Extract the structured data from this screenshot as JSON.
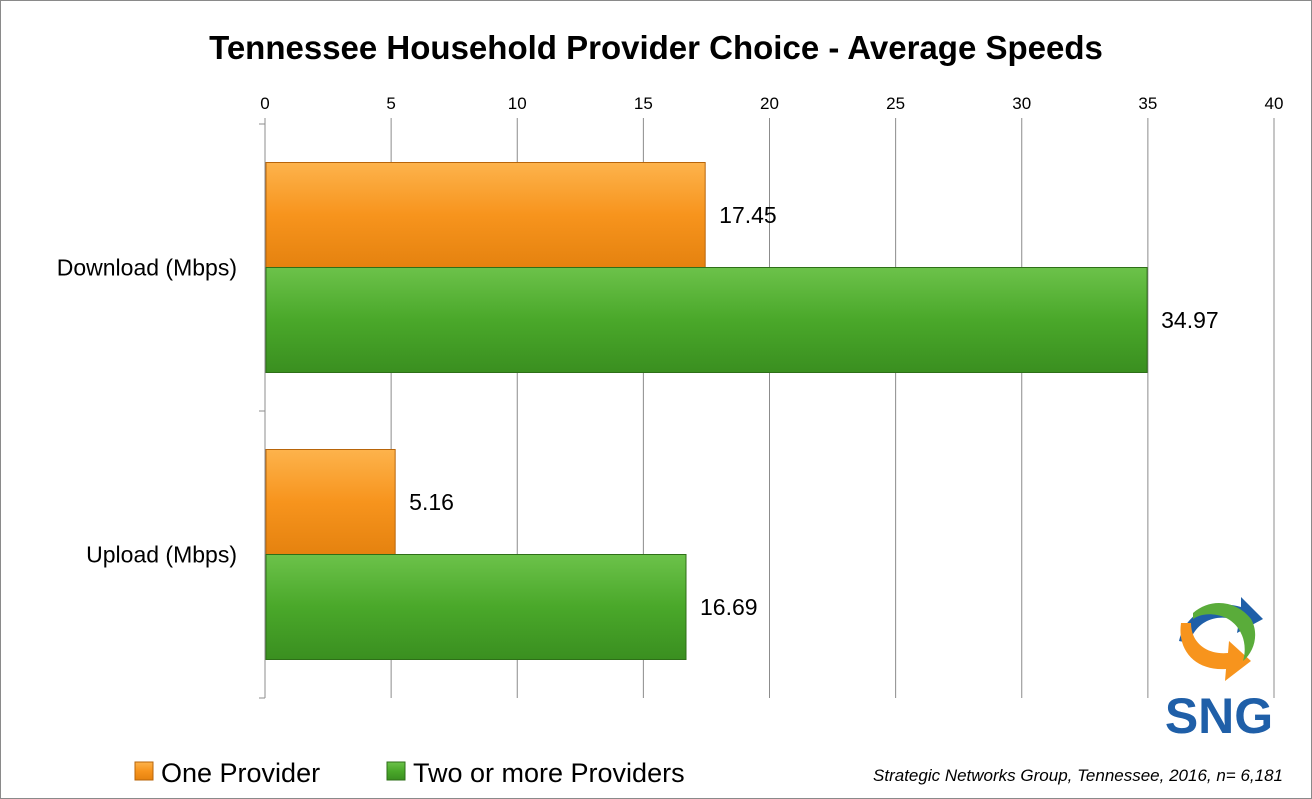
{
  "chart_data": {
    "type": "bar",
    "orientation": "horizontal",
    "title": "Tennessee Household Provider Choice - Average Speeds",
    "categories": [
      "Download (Mbps)",
      "Upload (Mbps)"
    ],
    "series": [
      {
        "name": "One Provider",
        "values": [
          17.45,
          5.16
        ],
        "color": "#f7941d"
      },
      {
        "name": "Two or more Providers",
        "values": [
          34.97,
          16.69
        ],
        "color": "#4aa82a"
      }
    ],
    "xlim": [
      0,
      40
    ],
    "xticks": [
      0,
      5,
      10,
      15,
      20,
      25,
      30,
      35,
      40
    ],
    "xaxis_position": "top",
    "grid": true,
    "data_labels": [
      "17.45",
      "34.97",
      "5.16",
      "16.69"
    ],
    "legend_position": "bottom-left"
  },
  "source_note": "Strategic Networks Group, Tennessee, 2016, n= 6,181",
  "logo": {
    "text": "SNG",
    "color_blue": "#1f5fa8",
    "color_green": "#5aac3a",
    "color_orange": "#f7941d"
  }
}
